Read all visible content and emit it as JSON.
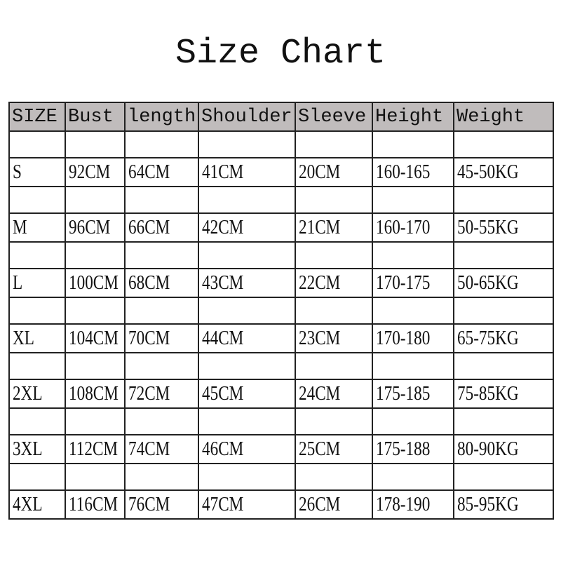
{
  "title": "Size Chart",
  "header_bg": "#c0bcbc",
  "columns": [
    "SIZE",
    "Bust",
    "length",
    "Shoulder",
    "Sleeve",
    "Height",
    "Weight"
  ],
  "rows": [
    [
      "S",
      "92CM",
      "64CM",
      "41CM",
      "20CM",
      "160-165",
      "45-50KG"
    ],
    [
      "M",
      "96CM",
      "66CM",
      "42CM",
      "21CM",
      "160-170",
      "50-55KG"
    ],
    [
      "L",
      "100CM",
      "68CM",
      "43CM",
      "22CM",
      "170-175",
      "50-65KG"
    ],
    [
      "XL",
      "104CM",
      "70CM",
      "44CM",
      "23CM",
      "170-180",
      "65-75KG"
    ],
    [
      "2XL",
      "108CM",
      "72CM",
      "45CM",
      "24CM",
      "175-185",
      "75-85KG"
    ],
    [
      "3XL",
      "112CM",
      "74CM",
      "46CM",
      "25CM",
      "175-188",
      "80-90KG"
    ],
    [
      "4XL",
      "116CM",
      "76CM",
      "47CM",
      "26CM",
      "178-190",
      "85-95KG"
    ]
  ]
}
